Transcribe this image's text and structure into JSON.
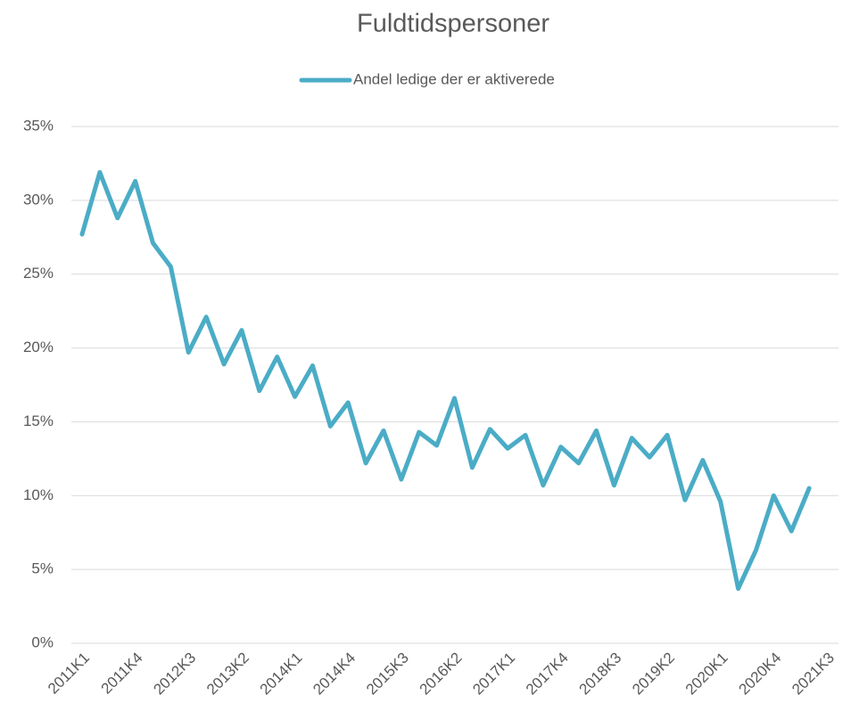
{
  "chart_data": {
    "type": "line",
    "title": "Fuldtidspersoner",
    "categories": [
      "2011K1",
      null,
      null,
      "2011K4",
      null,
      null,
      "2012K3",
      null,
      null,
      "2013K2",
      null,
      null,
      "2014K1",
      null,
      null,
      "2014K4",
      null,
      null,
      "2015K3",
      null,
      null,
      "2016K2",
      null,
      null,
      "2017K1",
      null,
      null,
      "2017K4",
      null,
      null,
      "2018K3",
      null,
      null,
      "2019K2",
      null,
      null,
      "2020K1",
      null,
      null,
      "2020K4",
      null,
      null,
      "2021K3"
    ],
    "series": [
      {
        "name": "Andel ledige der er aktiverede",
        "color": "#4bacc6",
        "values": [
          27.7,
          31.9,
          28.8,
          31.3,
          27.1,
          25.5,
          19.7,
          22.1,
          18.9,
          21.2,
          17.1,
          19.4,
          16.7,
          18.8,
          14.7,
          16.3,
          12.2,
          14.4,
          11.1,
          14.3,
          13.4,
          16.6,
          11.9,
          14.5,
          13.2,
          14.1,
          10.7,
          13.3,
          12.2,
          14.4,
          10.7,
          13.9,
          12.6,
          14.1,
          9.7,
          12.4,
          9.6,
          3.7,
          6.3,
          10.0,
          7.6,
          10.5,
          null
        ]
      }
    ],
    "ylim": [
      0,
      35
    ],
    "yticks": [
      {
        "value": 0,
        "label": "0%"
      },
      {
        "value": 5,
        "label": "5%"
      },
      {
        "value": 10,
        "label": "10%"
      },
      {
        "value": 15,
        "label": "15%"
      },
      {
        "value": 20,
        "label": "20%"
      },
      {
        "value": 25,
        "label": "25%"
      },
      {
        "value": 30,
        "label": "30%"
      },
      {
        "value": 35,
        "label": "35%"
      }
    ],
    "grid": true,
    "legend": "top"
  }
}
